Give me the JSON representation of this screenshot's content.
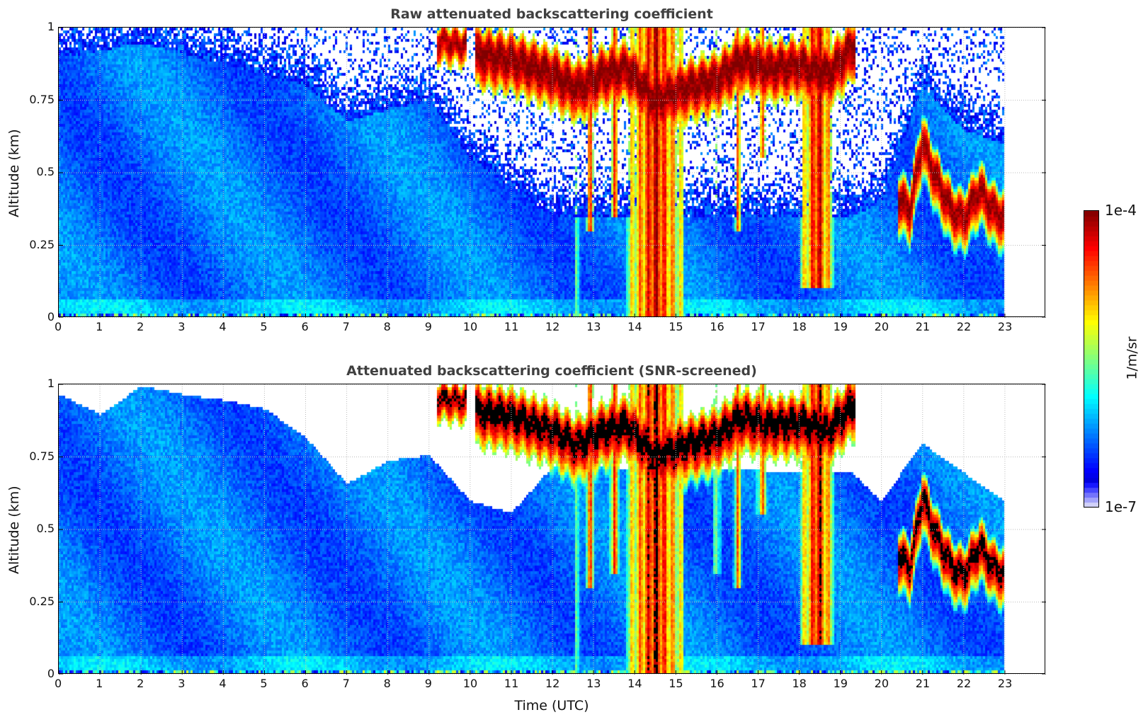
{
  "chart_data": {
    "type": "heatmap",
    "panels": [
      {
        "id": "raw",
        "title": "Raw attenuated backscattering coefficient",
        "ylabel": "Altitude (km)",
        "screened": false
      },
      {
        "id": "screened",
        "title": "Attenuated backscattering coefficient (SNR-screened)",
        "ylabel": "Altitude (km)",
        "screened": true
      }
    ],
    "xlabel": "Time (UTC)",
    "xlim": [
      0,
      24
    ],
    "data_time_range": [
      0,
      23
    ],
    "xticks": [
      "0",
      "1",
      "2",
      "3",
      "4",
      "5",
      "6",
      "7",
      "8",
      "9",
      "10",
      "11",
      "12",
      "13",
      "14",
      "15",
      "16",
      "17",
      "18",
      "19",
      "20",
      "21",
      "22",
      "23"
    ],
    "ylim": [
      0,
      1
    ],
    "yticks": [
      {
        "v": 0,
        "label": "0"
      },
      {
        "v": 0.25,
        "label": "0.25"
      },
      {
        "v": 0.5,
        "label": "0.5"
      },
      {
        "v": 0.75,
        "label": "0.75"
      },
      {
        "v": 1,
        "label": "1"
      }
    ],
    "grid": true,
    "colorbar": {
      "label": "1/m/sr",
      "min_label": "1e-7",
      "max_label": "1e-4",
      "log10_range": [
        -7,
        -4
      ],
      "colormap": "jet",
      "position": "right"
    },
    "background_log10": -6.3,
    "noise_top_altitude": [
      [
        0,
        0.9
      ],
      [
        2,
        0.95
      ],
      [
        4,
        0.88
      ],
      [
        6,
        0.8
      ],
      [
        7,
        0.68
      ],
      [
        8,
        0.72
      ],
      [
        9,
        0.75
      ],
      [
        10,
        0.55
      ],
      [
        11,
        0.45
      ],
      [
        12,
        0.35
      ],
      [
        19.3,
        0.35
      ],
      [
        20,
        0.4
      ],
      [
        21,
        0.8
      ],
      [
        22,
        0.65
      ],
      [
        23,
        0.6
      ]
    ],
    "screened_top_altitude": [
      [
        0,
        0.97
      ],
      [
        1,
        0.9
      ],
      [
        2,
        1.0
      ],
      [
        3,
        0.97
      ],
      [
        4,
        0.95
      ],
      [
        5,
        0.92
      ],
      [
        6,
        0.82
      ],
      [
        7,
        0.66
      ],
      [
        8,
        0.74
      ],
      [
        9,
        0.76
      ],
      [
        10,
        0.6
      ],
      [
        11,
        0.56
      ],
      [
        12,
        0.72
      ],
      [
        19.3,
        0.7
      ],
      [
        20,
        0.6
      ],
      [
        21,
        0.8
      ],
      [
        22,
        0.7
      ],
      [
        23,
        0.6
      ]
    ],
    "cloud_layers": [
      {
        "t": [
          9.2,
          9.9
        ],
        "center": [
          [
            9.2,
            0.96
          ],
          [
            9.9,
            0.95
          ]
        ],
        "halfwidth": 0.06,
        "peak_log10": -4.1
      },
      {
        "t": [
          10.1,
          19.35
        ],
        "center": [
          [
            10.1,
            0.92
          ],
          [
            11,
            0.9
          ],
          [
            12,
            0.85
          ],
          [
            12.6,
            0.8
          ],
          [
            13.2,
            0.85
          ],
          [
            13.8,
            0.87
          ],
          [
            14.5,
            0.76
          ],
          [
            15.2,
            0.8
          ],
          [
            16,
            0.83
          ],
          [
            16.6,
            0.9
          ],
          [
            17.2,
            0.87
          ],
          [
            18,
            0.88
          ],
          [
            18.7,
            0.85
          ],
          [
            19.35,
            0.95
          ]
        ],
        "halfwidth": 0.09,
        "peak_log10": -4.0
      },
      {
        "t": [
          20.4,
          23
        ],
        "center": [
          [
            20.4,
            0.42
          ],
          [
            20.7,
            0.38
          ],
          [
            21,
            0.62
          ],
          [
            21.3,
            0.5
          ],
          [
            21.7,
            0.38
          ],
          [
            22,
            0.35
          ],
          [
            22.4,
            0.45
          ],
          [
            22.7,
            0.38
          ],
          [
            23,
            0.35
          ]
        ],
        "halfwidth": 0.08,
        "peak_log10": -4.05
      }
    ],
    "fall_streaks": [
      {
        "t": 12.6,
        "width": 0.08,
        "bottom": 0.0,
        "log10": -5.2
      },
      {
        "t": 12.9,
        "width": 0.12,
        "bottom": 0.3,
        "log10": -4.6
      },
      {
        "t": 13.5,
        "width": 0.15,
        "bottom": 0.35,
        "log10": -4.7
      },
      {
        "t": 14.5,
        "width": 0.7,
        "bottom": 0.0,
        "log10": -4.3
      },
      {
        "t": 16.0,
        "width": 0.1,
        "bottom": 0.35,
        "log10": -5.2
      },
      {
        "t": 16.5,
        "width": 0.12,
        "bottom": 0.3,
        "log10": -4.9
      },
      {
        "t": 17.1,
        "width": 0.15,
        "bottom": 0.55,
        "log10": -4.8
      },
      {
        "t": 18.45,
        "width": 0.4,
        "bottom": 0.1,
        "log10": -4.3
      }
    ]
  }
}
